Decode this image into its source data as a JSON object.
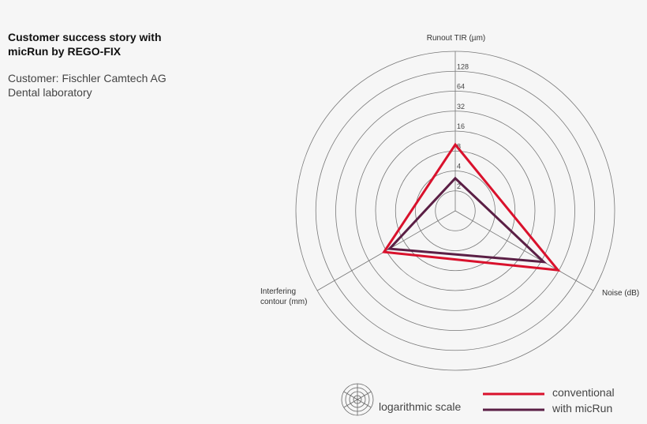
{
  "header": {
    "title_line1": "Customer success story with",
    "title_line2": "micRun by REGO-FIX",
    "customer": "Customer: Fischler Camtech AG",
    "type": "Dental laboratory"
  },
  "chart_data": {
    "type": "radar",
    "scale": "logarithmic",
    "axes": [
      {
        "label": "Runout TIR (µm)"
      },
      {
        "label": "Noise (dB)"
      },
      {
        "label_line1": "Interfering",
        "label_line2": "contour (mm)"
      }
    ],
    "rings": [
      2,
      4,
      8,
      16,
      32,
      64,
      128,
      256
    ],
    "tick_labels": [
      "2",
      "4",
      "8",
      "16",
      "32",
      "64",
      "128"
    ],
    "series": [
      {
        "name": "conventional",
        "color": "#d9112c",
        "values": [
          10,
          62,
          17.5
        ]
      },
      {
        "name": "with micRun",
        "color": "#5b1f45",
        "values": [
          3.1,
          35,
          14
        ]
      }
    ],
    "legend": {
      "scale_label": "logarithmic scale",
      "placement": "bottom-right"
    }
  }
}
